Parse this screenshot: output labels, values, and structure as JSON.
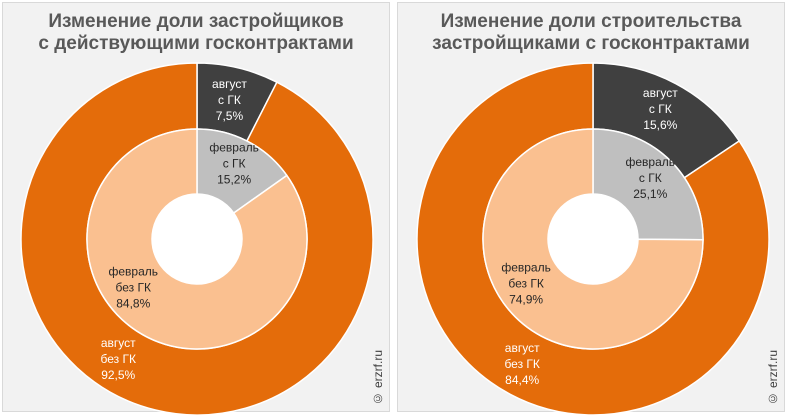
{
  "chart_data": [
    {
      "type": "pie",
      "title": [
        "Изменение доли застройщиков",
        "с действующими госконтрактами"
      ],
      "rings": [
        {
          "name": "август",
          "slices": [
            {
              "label": [
                "август",
                "с ГК",
                "7,5%"
              ],
              "value": 7.5,
              "color": "#404040"
            },
            {
              "label": [
                "август",
                "без ГК",
                "92,5%"
              ],
              "value": 92.5,
              "color": "#e46c0a"
            }
          ]
        },
        {
          "name": "февраль",
          "slices": [
            {
              "label": [
                "февраль",
                "с ГК",
                "15,2%"
              ],
              "value": 15.2,
              "color": "#bfbfbf"
            },
            {
              "label": [
                "февраль",
                "без ГК",
                "84,8%"
              ],
              "value": 84.8,
              "color": "#fac090"
            }
          ]
        }
      ],
      "watermark": "© erzrf.ru"
    },
    {
      "type": "pie",
      "title": [
        "Изменение доли строительства",
        "застройщиками с госконтрактами"
      ],
      "rings": [
        {
          "name": "август",
          "slices": [
            {
              "label": [
                "август",
                "с ГК",
                "15,6%"
              ],
              "value": 15.6,
              "color": "#404040"
            },
            {
              "label": [
                "август",
                "без ГК",
                "84,4%"
              ],
              "value": 84.4,
              "color": "#e46c0a"
            }
          ]
        },
        {
          "name": "февраль",
          "slices": [
            {
              "label": [
                "февраль",
                "с ГК",
                "25,1%"
              ],
              "value": 25.1,
              "color": "#bfbfbf"
            },
            {
              "label": [
                "февраль",
                "без ГК",
                "74,9%"
              ],
              "value": 74.9,
              "color": "#fac090"
            }
          ]
        }
      ],
      "watermark": "© erzrf.ru"
    }
  ]
}
